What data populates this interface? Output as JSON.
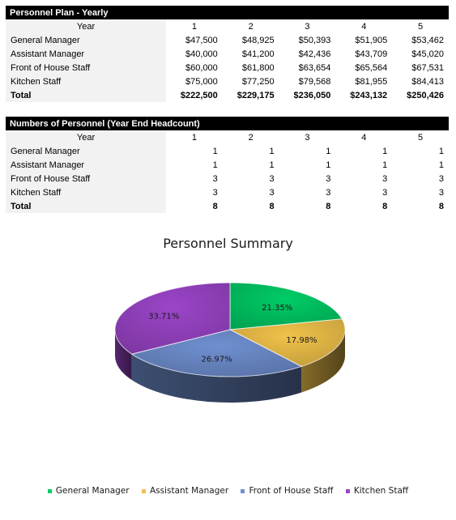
{
  "plan_table": {
    "title": "Personnel Plan - Yearly",
    "year_label": "Year",
    "years": [
      "1",
      "2",
      "3",
      "4",
      "5"
    ],
    "rows": [
      {
        "label": "General Manager",
        "values": [
          "$47,500",
          "$48,925",
          "$50,393",
          "$51,905",
          "$53,462"
        ]
      },
      {
        "label": "Assistant Manager",
        "values": [
          "$40,000",
          "$41,200",
          "$42,436",
          "$43,709",
          "$45,020"
        ]
      },
      {
        "label": "Front of House Staff",
        "values": [
          "$60,000",
          "$61,800",
          "$63,654",
          "$65,564",
          "$67,531"
        ]
      },
      {
        "label": "Kitchen Staff",
        "values": [
          "$75,000",
          "$77,250",
          "$79,568",
          "$81,955",
          "$84,413"
        ]
      }
    ],
    "total": {
      "label": "Total",
      "values": [
        "$222,500",
        "$229,175",
        "$236,050",
        "$243,132",
        "$250,426"
      ]
    }
  },
  "headcount_table": {
    "title": "Numbers of Personnel (Year End Headcount)",
    "year_label": "Year",
    "years": [
      "1",
      "2",
      "3",
      "4",
      "5"
    ],
    "rows": [
      {
        "label": "General Manager",
        "values": [
          "1",
          "1",
          "1",
          "1",
          "1"
        ]
      },
      {
        "label": "Assistant Manager",
        "values": [
          "1",
          "1",
          "1",
          "1",
          "1"
        ]
      },
      {
        "label": "Front of House Staff",
        "values": [
          "3",
          "3",
          "3",
          "3",
          "3"
        ]
      },
      {
        "label": "Kitchen Staff",
        "values": [
          "3",
          "3",
          "3",
          "3",
          "3"
        ]
      }
    ],
    "total": {
      "label": "Total",
      "values": [
        "8",
        "8",
        "8",
        "8",
        "8"
      ]
    }
  },
  "chart_data": {
    "type": "pie",
    "title": "Personnel Summary",
    "legend_position": "bottom",
    "slices": [
      {
        "name": "General Manager",
        "value": 21.35,
        "label": "21.35%",
        "color": "#00cc66"
      },
      {
        "name": "Assistant Manager",
        "value": 17.98,
        "label": "17.98%",
        "color": "#f0c24a"
      },
      {
        "name": "Front of House Staff",
        "value": 26.97,
        "label": "26.97%",
        "color": "#6f8fd0"
      },
      {
        "name": "Kitchen Staff",
        "value": 33.71,
        "label": "33.71%",
        "color": "#9b45c8"
      }
    ]
  }
}
